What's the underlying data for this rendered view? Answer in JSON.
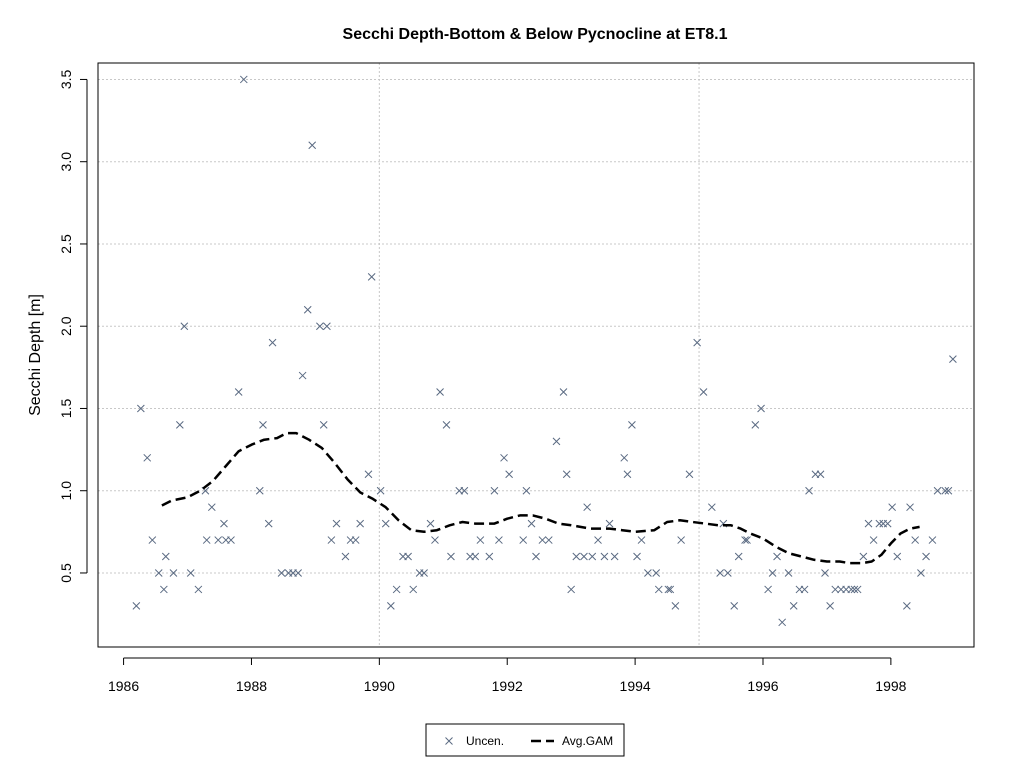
{
  "chart_data": {
    "type": "scatter",
    "title": "Secchi Depth-Bottom & Below Pycnocline at ET8.1",
    "xlabel": "",
    "ylabel": "Secchi Depth [m]",
    "xlim": [
      1985.6,
      1999.3
    ],
    "ylim": [
      0.05,
      3.6
    ],
    "x_ticks": [
      1986,
      1988,
      1990,
      1992,
      1994,
      1996,
      1998
    ],
    "x_tick_labels": [
      "1986",
      "1988",
      "1990",
      "1992",
      "1994",
      "1996",
      "1998"
    ],
    "y_ticks": [
      0.5,
      1.0,
      1.5,
      2.0,
      2.5,
      3.0,
      3.5
    ],
    "y_tick_labels": [
      "0.5",
      "1.0",
      "1.5",
      "2.0",
      "2.5",
      "3.0",
      "3.5"
    ],
    "x_grid": [
      1990,
      1995
    ],
    "y_grid": [
      0.5,
      1.0,
      1.5,
      2.0,
      2.5,
      3.0,
      3.5
    ],
    "grid": true,
    "legend_position": "bottom-center",
    "series": [
      {
        "name": "Uncen.",
        "kind": "points",
        "marker": "x",
        "color": "#5a6a82",
        "points": [
          [
            1986.2,
            0.3
          ],
          [
            1986.27,
            1.5
          ],
          [
            1986.37,
            1.2
          ],
          [
            1986.45,
            0.7
          ],
          [
            1986.55,
            0.5
          ],
          [
            1986.63,
            0.4
          ],
          [
            1986.66,
            0.6
          ],
          [
            1986.78,
            0.5
          ],
          [
            1986.88,
            1.4
          ],
          [
            1986.95,
            2.0
          ],
          [
            1987.05,
            0.5
          ],
          [
            1987.17,
            0.4
          ],
          [
            1987.28,
            1.0
          ],
          [
            1987.3,
            0.7
          ],
          [
            1987.38,
            0.9
          ],
          [
            1987.48,
            0.7
          ],
          [
            1987.57,
            0.8
          ],
          [
            1987.6,
            0.7
          ],
          [
            1987.68,
            0.7
          ],
          [
            1987.8,
            1.6
          ],
          [
            1987.88,
            3.5
          ],
          [
            1988.13,
            1.0
          ],
          [
            1988.18,
            1.4
          ],
          [
            1988.27,
            0.8
          ],
          [
            1988.33,
            1.9
          ],
          [
            1988.47,
            0.5
          ],
          [
            1988.58,
            0.5
          ],
          [
            1988.65,
            0.5
          ],
          [
            1988.73,
            0.5
          ],
          [
            1988.8,
            1.7
          ],
          [
            1988.88,
            2.1
          ],
          [
            1988.95,
            3.1
          ],
          [
            1989.07,
            2.0
          ],
          [
            1989.13,
            1.4
          ],
          [
            1989.18,
            2.0
          ],
          [
            1989.25,
            0.7
          ],
          [
            1989.33,
            0.8
          ],
          [
            1989.47,
            0.6
          ],
          [
            1989.55,
            0.7
          ],
          [
            1989.63,
            0.7
          ],
          [
            1989.7,
            0.8
          ],
          [
            1989.83,
            1.1
          ],
          [
            1989.88,
            2.3
          ],
          [
            1990.02,
            1.0
          ],
          [
            1990.1,
            0.8
          ],
          [
            1990.18,
            0.3
          ],
          [
            1990.27,
            0.4
          ],
          [
            1990.37,
            0.6
          ],
          [
            1990.45,
            0.6
          ],
          [
            1990.53,
            0.4
          ],
          [
            1990.63,
            0.5
          ],
          [
            1990.7,
            0.5
          ],
          [
            1990.8,
            0.8
          ],
          [
            1990.87,
            0.7
          ],
          [
            1990.95,
            1.6
          ],
          [
            1991.05,
            1.4
          ],
          [
            1991.12,
            0.6
          ],
          [
            1991.25,
            1.0
          ],
          [
            1991.33,
            1.0
          ],
          [
            1991.42,
            0.6
          ],
          [
            1991.5,
            0.6
          ],
          [
            1991.58,
            0.7
          ],
          [
            1991.72,
            0.6
          ],
          [
            1991.8,
            1.0
          ],
          [
            1991.87,
            0.7
          ],
          [
            1991.95,
            1.2
          ],
          [
            1992.03,
            1.1
          ],
          [
            1992.25,
            0.7
          ],
          [
            1992.3,
            1.0
          ],
          [
            1992.38,
            0.8
          ],
          [
            1992.45,
            0.6
          ],
          [
            1992.55,
            0.7
          ],
          [
            1992.65,
            0.7
          ],
          [
            1992.77,
            1.3
          ],
          [
            1992.88,
            1.6
          ],
          [
            1992.93,
            1.1
          ],
          [
            1993.0,
            0.4
          ],
          [
            1993.08,
            0.6
          ],
          [
            1993.2,
            0.6
          ],
          [
            1993.25,
            0.9
          ],
          [
            1993.33,
            0.6
          ],
          [
            1993.42,
            0.7
          ],
          [
            1993.52,
            0.6
          ],
          [
            1993.6,
            0.8
          ],
          [
            1993.68,
            0.6
          ],
          [
            1993.83,
            1.2
          ],
          [
            1993.88,
            1.1
          ],
          [
            1993.95,
            1.4
          ],
          [
            1994.03,
            0.6
          ],
          [
            1994.1,
            0.7
          ],
          [
            1994.2,
            0.5
          ],
          [
            1994.33,
            0.5
          ],
          [
            1994.37,
            0.4
          ],
          [
            1994.52,
            0.4
          ],
          [
            1994.55,
            0.4
          ],
          [
            1994.63,
            0.3
          ],
          [
            1994.72,
            0.7
          ],
          [
            1994.85,
            1.1
          ],
          [
            1994.97,
            1.9
          ],
          [
            1995.07,
            1.6
          ],
          [
            1995.2,
            0.9
          ],
          [
            1995.33,
            0.5
          ],
          [
            1995.38,
            0.8
          ],
          [
            1995.45,
            0.5
          ],
          [
            1995.55,
            0.3
          ],
          [
            1995.62,
            0.6
          ],
          [
            1995.72,
            0.7
          ],
          [
            1995.75,
            0.7
          ],
          [
            1995.88,
            1.4
          ],
          [
            1995.97,
            1.5
          ],
          [
            1996.08,
            0.4
          ],
          [
            1996.15,
            0.5
          ],
          [
            1996.22,
            0.6
          ],
          [
            1996.3,
            0.2
          ],
          [
            1996.4,
            0.5
          ],
          [
            1996.48,
            0.3
          ],
          [
            1996.57,
            0.4
          ],
          [
            1996.65,
            0.4
          ],
          [
            1996.72,
            1.0
          ],
          [
            1996.82,
            1.1
          ],
          [
            1996.9,
            1.1
          ],
          [
            1996.97,
            0.5
          ],
          [
            1997.05,
            0.3
          ],
          [
            1997.13,
            0.4
          ],
          [
            1997.22,
            0.4
          ],
          [
            1997.3,
            0.4
          ],
          [
            1997.38,
            0.4
          ],
          [
            1997.43,
            0.4
          ],
          [
            1997.48,
            0.4
          ],
          [
            1997.57,
            0.6
          ],
          [
            1997.65,
            0.8
          ],
          [
            1997.73,
            0.7
          ],
          [
            1997.82,
            0.8
          ],
          [
            1997.88,
            0.8
          ],
          [
            1997.95,
            0.8
          ],
          [
            1998.02,
            0.9
          ],
          [
            1998.1,
            0.6
          ],
          [
            1998.25,
            0.3
          ],
          [
            1998.3,
            0.9
          ],
          [
            1998.38,
            0.7
          ],
          [
            1998.47,
            0.5
          ],
          [
            1998.55,
            0.6
          ],
          [
            1998.65,
            0.7
          ],
          [
            1998.73,
            1.0
          ],
          [
            1998.85,
            1.0
          ],
          [
            1998.9,
            1.0
          ],
          [
            1998.97,
            1.8
          ]
        ]
      },
      {
        "name": "Avg.GAM",
        "kind": "line",
        "dash": "long-dash",
        "color": "#000000",
        "points": [
          [
            1986.6,
            0.91
          ],
          [
            1986.75,
            0.94
          ],
          [
            1987.0,
            0.96
          ],
          [
            1987.2,
            1.0
          ],
          [
            1987.4,
            1.06
          ],
          [
            1987.6,
            1.15
          ],
          [
            1987.8,
            1.24
          ],
          [
            1988.0,
            1.28
          ],
          [
            1988.2,
            1.31
          ],
          [
            1988.4,
            1.32
          ],
          [
            1988.55,
            1.35
          ],
          [
            1988.7,
            1.35
          ],
          [
            1988.9,
            1.31
          ],
          [
            1989.1,
            1.26
          ],
          [
            1989.3,
            1.17
          ],
          [
            1989.5,
            1.07
          ],
          [
            1989.7,
            0.99
          ],
          [
            1989.9,
            0.95
          ],
          [
            1990.1,
            0.9
          ],
          [
            1990.3,
            0.82
          ],
          [
            1990.5,
            0.76
          ],
          [
            1990.7,
            0.75
          ],
          [
            1990.9,
            0.76
          ],
          [
            1991.1,
            0.79
          ],
          [
            1991.3,
            0.81
          ],
          [
            1991.5,
            0.8
          ],
          [
            1991.8,
            0.8
          ],
          [
            1992.0,
            0.83
          ],
          [
            1992.2,
            0.85
          ],
          [
            1992.4,
            0.85
          ],
          [
            1992.6,
            0.83
          ],
          [
            1992.8,
            0.8
          ],
          [
            1993.0,
            0.79
          ],
          [
            1993.3,
            0.77
          ],
          [
            1993.6,
            0.77
          ],
          [
            1993.8,
            0.76
          ],
          [
            1994.0,
            0.75
          ],
          [
            1994.3,
            0.76
          ],
          [
            1994.5,
            0.81
          ],
          [
            1994.7,
            0.82
          ],
          [
            1994.9,
            0.81
          ],
          [
            1995.1,
            0.8
          ],
          [
            1995.3,
            0.79
          ],
          [
            1995.5,
            0.79
          ],
          [
            1995.65,
            0.77
          ],
          [
            1995.8,
            0.74
          ],
          [
            1996.0,
            0.71
          ],
          [
            1996.2,
            0.66
          ],
          [
            1996.4,
            0.62
          ],
          [
            1996.6,
            0.6
          ],
          [
            1996.8,
            0.58
          ],
          [
            1997.0,
            0.57
          ],
          [
            1997.2,
            0.57
          ],
          [
            1997.35,
            0.56
          ],
          [
            1997.55,
            0.56
          ],
          [
            1997.7,
            0.57
          ],
          [
            1997.85,
            0.61
          ],
          [
            1998.0,
            0.68
          ],
          [
            1998.15,
            0.74
          ],
          [
            1998.3,
            0.77
          ],
          [
            1998.45,
            0.78
          ]
        ]
      }
    ]
  }
}
